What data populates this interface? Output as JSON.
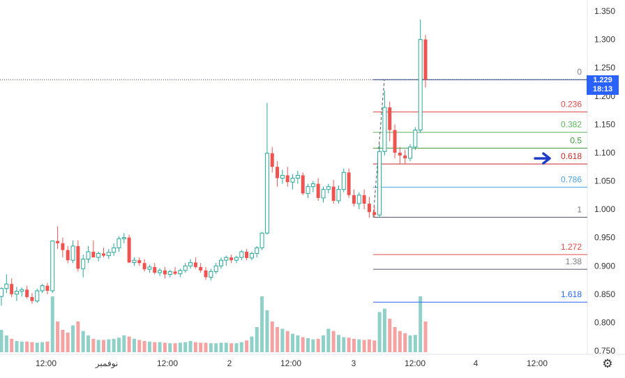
{
  "chart_data": {
    "type": "candlestick",
    "price_axis": {
      "ticks": [
        "1.350",
        "1.300",
        "1.250",
        "1.200",
        "1.150",
        "1.100",
        "1.050",
        "1.000",
        "0.950",
        "0.900",
        "0.850",
        "0.800",
        "0.750"
      ],
      "tick_values": [
        1.35,
        1.3,
        1.25,
        1.2,
        1.15,
        1.1,
        1.05,
        1.0,
        0.95,
        0.9,
        0.85,
        0.8,
        0.75
      ]
    },
    "time_axis": {
      "ticks": [
        "12:00",
        "نوفمبر",
        "12:00",
        "2",
        "12:00",
        "3",
        "12:00",
        "4",
        "12:00"
      ]
    },
    "current_price": {
      "value": "1.229",
      "countdown": "18:13",
      "numeric": 1.229
    },
    "fib_levels": [
      {
        "label": "0",
        "price": 1.229,
        "color": "#7b7b7b",
        "line": "#2a3f7a"
      },
      {
        "label": "0.236",
        "price": 1.172,
        "color": "#e04848",
        "line": "#e04848"
      },
      {
        "label": "0.382",
        "price": 1.136,
        "color": "#5bb35b",
        "line": "#5bb35b"
      },
      {
        "label": "0.5",
        "price": 1.108,
        "color": "#3a9a3a",
        "line": "#3a9a3a"
      },
      {
        "label": "0.618",
        "price": 1.08,
        "color": "#c62828",
        "line": "#c62828"
      },
      {
        "label": "0.786",
        "price": 1.039,
        "color": "#4aa3df",
        "line": "#4aa3df"
      },
      {
        "label": "1",
        "price": 0.986,
        "color": "#7b7b7b",
        "line": "#555566"
      },
      {
        "label": "1.272",
        "price": 0.92,
        "color": "#e04848",
        "line": "#e04848"
      },
      {
        "label": "1.38",
        "price": 0.894,
        "color": "#7b7b7b",
        "line": "#555566"
      },
      {
        "label": "1.618",
        "price": 0.836,
        "color": "#2962ff",
        "line": "#2962ff"
      }
    ],
    "candles": [
      [
        0.846,
        0.862,
        0.83,
        0.86
      ],
      [
        0.86,
        0.885,
        0.852,
        0.868
      ],
      [
        0.868,
        0.878,
        0.845,
        0.85
      ],
      [
        0.85,
        0.863,
        0.838,
        0.855
      ],
      [
        0.855,
        0.862,
        0.846,
        0.858
      ],
      [
        0.858,
        0.865,
        0.842,
        0.845
      ],
      [
        0.845,
        0.852,
        0.833,
        0.838
      ],
      [
        0.838,
        0.86,
        0.835,
        0.856
      ],
      [
        0.856,
        0.868,
        0.852,
        0.865
      ],
      [
        0.865,
        0.87,
        0.85,
        0.856
      ],
      [
        0.856,
        0.945,
        0.852,
        0.944
      ],
      [
        0.944,
        0.97,
        0.93,
        0.94
      ],
      [
        0.94,
        0.95,
        0.915,
        0.928
      ],
      [
        0.928,
        0.935,
        0.905,
        0.91
      ],
      [
        0.91,
        0.945,
        0.905,
        0.935
      ],
      [
        0.935,
        0.945,
        0.89,
        0.895
      ],
      [
        0.895,
        0.92,
        0.88,
        0.912
      ],
      [
        0.912,
        0.935,
        0.905,
        0.925
      ],
      [
        0.925,
        0.945,
        0.915,
        0.915
      ],
      [
        0.915,
        0.925,
        0.908,
        0.922
      ],
      [
        0.922,
        0.932,
        0.915,
        0.918
      ],
      [
        0.918,
        0.93,
        0.912,
        0.924
      ],
      [
        0.924,
        0.94,
        0.918,
        0.932
      ],
      [
        0.932,
        0.952,
        0.925,
        0.948
      ],
      [
        0.948,
        0.958,
        0.94,
        0.95
      ],
      [
        0.95,
        0.955,
        0.905,
        0.906
      ],
      [
        0.906,
        0.915,
        0.9,
        0.91
      ],
      [
        0.91,
        0.915,
        0.9,
        0.905
      ],
      [
        0.905,
        0.912,
        0.89,
        0.894
      ],
      [
        0.894,
        0.902,
        0.888,
        0.898
      ],
      [
        0.898,
        0.905,
        0.885,
        0.888
      ],
      [
        0.888,
        0.896,
        0.882,
        0.892
      ],
      [
        0.892,
        0.898,
        0.878,
        0.885
      ],
      [
        0.885,
        0.893,
        0.88,
        0.89
      ],
      [
        0.89,
        0.898,
        0.884,
        0.886
      ],
      [
        0.886,
        0.895,
        0.88,
        0.892
      ],
      [
        0.892,
        0.905,
        0.888,
        0.9
      ],
      [
        0.9,
        0.912,
        0.895,
        0.906
      ],
      [
        0.906,
        0.915,
        0.895,
        0.898
      ],
      [
        0.898,
        0.905,
        0.888,
        0.892
      ],
      [
        0.892,
        0.898,
        0.875,
        0.88
      ],
      [
        0.88,
        0.895,
        0.874,
        0.89
      ],
      [
        0.89,
        0.905,
        0.886,
        0.9
      ],
      [
        0.9,
        0.915,
        0.895,
        0.91
      ],
      [
        0.91,
        0.918,
        0.9,
        0.915
      ],
      [
        0.915,
        0.92,
        0.905,
        0.91
      ],
      [
        0.91,
        0.918,
        0.905,
        0.915
      ],
      [
        0.915,
        0.928,
        0.91,
        0.925
      ],
      [
        0.925,
        0.93,
        0.91,
        0.914
      ],
      [
        0.914,
        0.925,
        0.91,
        0.922
      ],
      [
        0.922,
        0.935,
        0.915,
        0.932
      ],
      [
        0.932,
        0.96,
        0.928,
        0.958
      ],
      [
        0.958,
        1.188,
        0.955,
        1.099
      ],
      [
        1.099,
        1.11,
        1.065,
        1.075
      ],
      [
        1.075,
        1.085,
        1.04,
        1.055
      ],
      [
        1.055,
        1.07,
        1.045,
        1.06
      ],
      [
        1.06,
        1.075,
        1.04,
        1.048
      ],
      [
        1.048,
        1.062,
        1.035,
        1.055
      ],
      [
        1.055,
        1.068,
        1.045,
        1.06
      ],
      [
        1.06,
        1.065,
        1.025,
        1.028
      ],
      [
        1.028,
        1.045,
        1.02,
        1.04
      ],
      [
        1.04,
        1.05,
        1.03,
        1.045
      ],
      [
        1.045,
        1.055,
        1.015,
        1.02
      ],
      [
        1.02,
        1.04,
        1.012,
        1.035
      ],
      [
        1.035,
        1.045,
        1.028,
        1.04
      ],
      [
        1.04,
        1.052,
        1.01,
        1.015
      ],
      [
        1.015,
        1.042,
        1.01,
        1.035
      ],
      [
        1.035,
        1.072,
        1.03,
        1.065
      ],
      [
        1.065,
        1.072,
        1.02,
        1.025
      ],
      [
        1.025,
        1.035,
        1.005,
        1.01
      ],
      [
        1.01,
        1.03,
        1.0,
        1.025
      ],
      [
        1.025,
        1.035,
        1.0,
        1.01
      ],
      [
        1.01,
        1.022,
        0.985,
        0.995
      ],
      [
        0.995,
        1.005,
        0.985,
        0.99
      ],
      [
        0.99,
        1.115,
        0.985,
        1.102
      ],
      [
        1.102,
        1.21,
        1.095,
        1.18
      ],
      [
        1.18,
        1.19,
        1.12,
        1.14
      ],
      [
        1.14,
        1.15,
        1.09,
        1.1
      ],
      [
        1.1,
        1.11,
        1.08,
        1.095
      ],
      [
        1.095,
        1.105,
        1.08,
        1.09
      ],
      [
        1.09,
        1.115,
        1.085,
        1.11
      ],
      [
        1.11,
        1.145,
        1.105,
        1.14
      ],
      [
        1.14,
        1.335,
        1.135,
        1.3
      ],
      [
        1.3,
        1.308,
        1.215,
        1.229
      ]
    ],
    "volumes": [
      0.4,
      0.3,
      0.24,
      0.2,
      0.19,
      0.19,
      0.18,
      0.17,
      0.18,
      0.19,
      1.0,
      0.55,
      0.4,
      0.35,
      0.48,
      0.55,
      0.38,
      0.3,
      0.24,
      0.22,
      0.22,
      0.23,
      0.24,
      0.26,
      0.3,
      0.28,
      0.24,
      0.22,
      0.2,
      0.19,
      0.18,
      0.18,
      0.17,
      0.16,
      0.16,
      0.17,
      0.18,
      0.2,
      0.18,
      0.17,
      0.17,
      0.16,
      0.16,
      0.17,
      0.17,
      0.16,
      0.16,
      0.18,
      0.21,
      0.28,
      0.45,
      1.0,
      0.75,
      0.55,
      0.45,
      0.42,
      0.38,
      0.33,
      0.3,
      0.27,
      0.25,
      0.23,
      0.24,
      0.3,
      0.42,
      0.38,
      0.31,
      0.27,
      0.26,
      0.24,
      0.23,
      0.22,
      0.23,
      0.21,
      0.72,
      0.78,
      0.6,
      0.45,
      0.38,
      0.34,
      0.3,
      0.31,
      1.0,
      0.55
    ],
    "colors": {
      "up": "#26a69a",
      "down": "#ef5350",
      "up_vol": "#8fd1c9",
      "down_vol": "#f4a3a2"
    }
  },
  "axis_controls": {
    "settings_icon": "gear-icon"
  }
}
